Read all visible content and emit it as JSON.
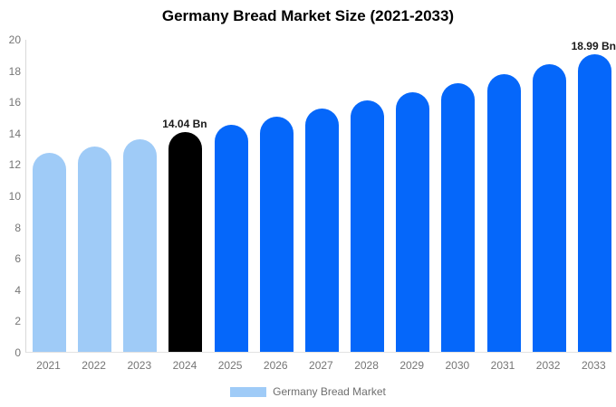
{
  "chart_data": {
    "type": "bar",
    "title": "Germany Bread Market Size (2021-2033)",
    "categories": [
      "2021",
      "2022",
      "2023",
      "2024",
      "2025",
      "2026",
      "2027",
      "2028",
      "2029",
      "2030",
      "2031",
      "2032",
      "2033"
    ],
    "series": [
      {
        "name": "Germany Bread Market",
        "values": [
          12.7,
          13.13,
          13.58,
          14.04,
          14.52,
          15.01,
          15.53,
          16.05,
          16.6,
          17.17,
          17.75,
          18.36,
          18.99
        ]
      }
    ],
    "xlabel": "",
    "ylabel": "",
    "ylim": [
      0,
      20
    ],
    "yticks": [
      0,
      2,
      4,
      6,
      8,
      10,
      12,
      14,
      16,
      18,
      20
    ],
    "grid": false,
    "legend_position": "bottom",
    "bar_colors": [
      "#9FCBF7",
      "#9FCBF7",
      "#9FCBF7",
      "#000000",
      "#0567FA",
      "#0567FA",
      "#0567FA",
      "#0567FA",
      "#0567FA",
      "#0567FA",
      "#0567FA",
      "#0567FA",
      "#0567FA"
    ],
    "data_labels": [
      {
        "index": 3,
        "text": "14.04 Bn"
      },
      {
        "index": 12,
        "text": "18.99 Bn"
      }
    ],
    "colors": {
      "past_bars": "#9FCBF7",
      "base_year_bar": "#000000",
      "forecast_bars": "#0567FA",
      "axis_line": "#d9d9d9",
      "tick_text": "#757575",
      "legend_text": "#6e6e6e"
    }
  },
  "legend": {
    "label": "Germany Bread Market",
    "swatch_color": "#9FCBF7"
  }
}
